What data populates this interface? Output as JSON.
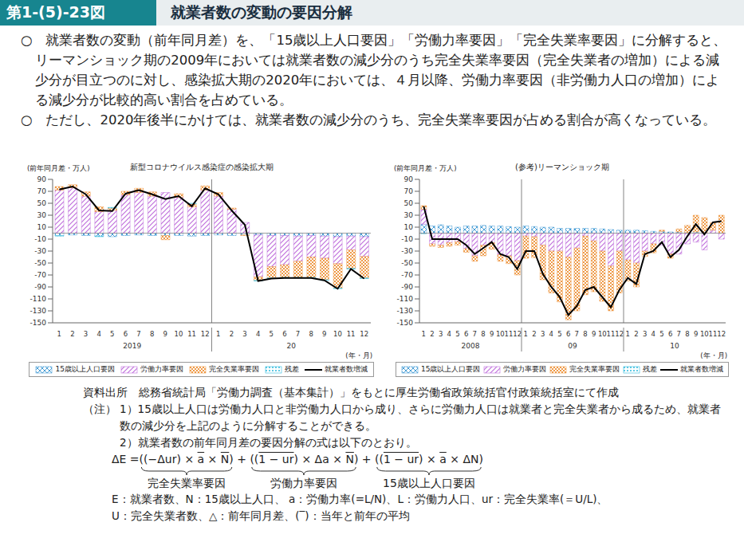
{
  "header": {
    "figure_no": "第1-(5)-23図",
    "title": "就業者数の変動の要因分解"
  },
  "bullets": [
    "○　就業者数の変動（前年同月差）を、「15歳以上人口要因」「労働力率要因」「完全失業率要因」に分解すると、リーマンショック期の2009年においては就業者数の減少分のうち完全失業率要因（完全失業者の増加）による減少分が目立つのに対し、感染拡大期の2020年においては、４月以降、労働力率要因（非労働力人口の増加）による減少分が比較的高い割合を占めている。",
    "○　ただし、2020年後半にかけては、就業者数の減少分のうち、完全失業率要因が占める割合が高くなっている。"
  ],
  "chart_data": [
    {
      "type": "bar",
      "title": "新型コロナウイルス感染症の感染拡大期",
      "y_label": "(前年同月差・万人)",
      "x_label": "(年・月)",
      "stacked": true,
      "grid": false,
      "legend": "bottom",
      "x_groups": [
        {
          "label": "2019",
          "categories": [
            "1",
            "2",
            "3",
            "4",
            "5",
            "6",
            "7",
            "8",
            "9",
            "10",
            "11",
            "12"
          ]
        },
        {
          "label": "20",
          "categories": [
            "1",
            "2",
            "3",
            "4",
            "5",
            "6",
            "7",
            "8",
            "9",
            "10",
            "11",
            "12"
          ]
        }
      ],
      "ylim": [
        -150,
        90
      ],
      "yticks": [
        90,
        70,
        50,
        30,
        10,
        -10,
        -30,
        -50,
        -70,
        -90,
        -110,
        -130,
        -150
      ],
      "series": [
        {
          "name": "15歳以上人口要因",
          "type": "bar",
          "color": "#4a9fd6",
          "values": [
            -4,
            -3,
            -4,
            -5,
            -6,
            -4,
            -3,
            -4,
            -4,
            -4,
            -5,
            -4,
            -3,
            -4,
            -3,
            -3,
            -4,
            -4,
            -5,
            -4,
            -5,
            -6,
            -5,
            -6
          ]
        },
        {
          "name": "労働力率要因",
          "type": "bar",
          "color": "#c070dc",
          "values": [
            72,
            76,
            62,
            36,
            38,
            64,
            68,
            62,
            68,
            60,
            44,
            72,
            62,
            40,
            18,
            -70,
            -52,
            -49,
            -42,
            -36,
            -37,
            -45,
            -23,
            -33
          ]
        },
        {
          "name": "完全失業率要因",
          "type": "bar",
          "color": "#ee9a48",
          "values": [
            6,
            5,
            7,
            8,
            4,
            6,
            7,
            7,
            -7,
            6,
            5,
            7,
            6,
            2,
            -1,
            -6,
            -19,
            -21,
            -27,
            -34,
            -36,
            -41,
            -31,
            -36
          ]
        },
        {
          "name": "残差",
          "type": "bar",
          "color": "#2cb8dc",
          "values": [
            -1,
            0,
            0,
            -1,
            1,
            0,
            0,
            0,
            0,
            0,
            1,
            0,
            0,
            0,
            0,
            -1,
            -1,
            -1,
            -1,
            -1,
            -1,
            -1,
            -1,
            -1
          ]
        },
        {
          "name": "就業者数増減",
          "type": "line",
          "color": "#000000",
          "values": [
            73,
            78,
            65,
            38,
            37,
            66,
            72,
            65,
            57,
            62,
            45,
            75,
            65,
            38,
            14,
            -80,
            -76,
            -75,
            -75,
            -75,
            -79,
            -93,
            -60,
            -76
          ]
        }
      ]
    },
    {
      "type": "bar",
      "title": "(参考)リーマンショック期",
      "y_label": "(前年同月差・万人)",
      "x_label": "(年・月)",
      "stacked": true,
      "grid": false,
      "legend": "bottom",
      "x_groups": [
        {
          "label": "2008",
          "categories": [
            "1",
            "2",
            "3",
            "4",
            "5",
            "6",
            "7",
            "8",
            "9",
            "10",
            "11",
            "12"
          ]
        },
        {
          "label": "09",
          "categories": [
            "1",
            "2",
            "3",
            "4",
            "5",
            "6",
            "7",
            "8",
            "9",
            "10",
            "11",
            "12"
          ]
        },
        {
          "label": "10",
          "categories": [
            "1",
            "2",
            "3",
            "4",
            "5",
            "6",
            "7",
            "8",
            "9",
            "10",
            "11",
            "12"
          ]
        }
      ],
      "ylim": [
        -150,
        90
      ],
      "yticks": [
        90,
        70,
        50,
        30,
        10,
        -10,
        -30,
        -50,
        -70,
        -90,
        -110,
        -130,
        -150
      ],
      "series": [
        {
          "name": "15歳以上人口要因",
          "type": "bar",
          "color": "#4a9fd6",
          "values": [
            15,
            12,
            14,
            12,
            10,
            12,
            12,
            13,
            12,
            12,
            11,
            10,
            12,
            11,
            10,
            10,
            8,
            8,
            8,
            8,
            8,
            7,
            6,
            5,
            5,
            5,
            4,
            3,
            3,
            2,
            2,
            1,
            2,
            1,
            0,
            0
          ]
        },
        {
          "name": "労働力率要因",
          "type": "bar",
          "color": "#c070dc",
          "values": [
            25,
            -18,
            -20,
            -16,
            -14,
            -26,
            -38,
            -20,
            -16,
            -36,
            -38,
            -46,
            -5,
            -6,
            -20,
            -30,
            -30,
            -40,
            -25,
            -5,
            -13,
            -30,
            -55,
            -30,
            -45,
            -50,
            -30,
            -18,
            -20,
            -35,
            -35,
            -18,
            -15,
            -28,
            5,
            -10
          ]
        },
        {
          "name": "完全失業率要因",
          "type": "bar",
          "color": "#ee9a48",
          "values": [
            6,
            -4,
            -4,
            -6,
            -6,
            -6,
            -9,
            -18,
            -11,
            -11,
            -13,
            -24,
            -37,
            -35,
            -58,
            -70,
            -85,
            -105,
            -105,
            -98,
            -85,
            -84,
            -75,
            -70,
            -35,
            -40,
            -9,
            -15,
            2,
            -7,
            5,
            12,
            28,
            25,
            13,
            30
          ]
        },
        {
          "name": "残差",
          "type": "bar",
          "color": "#2cb8dc",
          "values": [
            -1,
            0,
            0,
            0,
            0,
            0,
            0,
            0,
            0,
            0,
            0,
            0,
            0,
            0,
            0,
            0,
            0,
            0,
            0,
            0,
            0,
            0,
            0,
            0,
            0,
            0,
            0,
            0,
            0,
            0,
            0,
            0,
            0,
            0,
            0,
            0
          ]
        },
        {
          "name": "就業者数増減",
          "type": "line",
          "color": "#000000",
          "values": [
            45,
            -10,
            -10,
            -10,
            -10,
            -20,
            -35,
            -25,
            -15,
            -35,
            -40,
            -60,
            -30,
            -30,
            -68,
            -90,
            -107,
            -137,
            -122,
            -95,
            -90,
            -107,
            -124,
            -95,
            -75,
            -85,
            -35,
            -30,
            -15,
            -40,
            -28,
            -5,
            15,
            -2,
            18,
            20
          ]
        }
      ]
    }
  ],
  "notes": {
    "source": "資料出所　総務省統計局「労働力調査（基本集計）」をもとに厚生労働省政策統括官付政策統括室にて作成",
    "note_label": "（注）",
    "note_lines": [
      "1）15歳以上人口は労働力人口と非労働力人口から成り、さらに労働力人口は就業者と完全失業者から成るため、就業者数の減少分を上記のように分解することができる。",
      "2）就業者数の前年同月差の要因分解の式は以下のとおり。"
    ],
    "formula": {
      "lhs": "ΔE = ",
      "joiner": " + ",
      "terms": [
        {
          "label": "完全失業率要因",
          "pieces": [
            {
              "text": "((−Δur) × "
            },
            {
              "text": "a",
              "overline": true
            },
            {
              "text": " × "
            },
            {
              "text": "N",
              "overline": true
            },
            {
              "text": ")"
            }
          ]
        },
        {
          "label": "労働力率要因",
          "pieces": [
            {
              "text": "(("
            },
            {
              "text": "1 − ur",
              "overline": true
            },
            {
              "text": ") × Δa × "
            },
            {
              "text": "N",
              "overline": true
            },
            {
              "text": ")"
            }
          ]
        },
        {
          "label": "15歳以上人口要因",
          "pieces": [
            {
              "text": "(("
            },
            {
              "text": "1 − ur",
              "overline": true
            },
            {
              "text": ") × "
            },
            {
              "text": "a",
              "overline": true
            },
            {
              "text": " × ΔN)"
            }
          ]
        }
      ]
    },
    "definitions": [
      "E：就業者数、N：15歳以上人口、 a：労働力率(=L/N)、L：労働力人口、ur：完全失業率(＝U/L)、",
      "U：完全失業者数、△：前年同月差、(‾)：当年と前年の平均"
    ]
  }
}
